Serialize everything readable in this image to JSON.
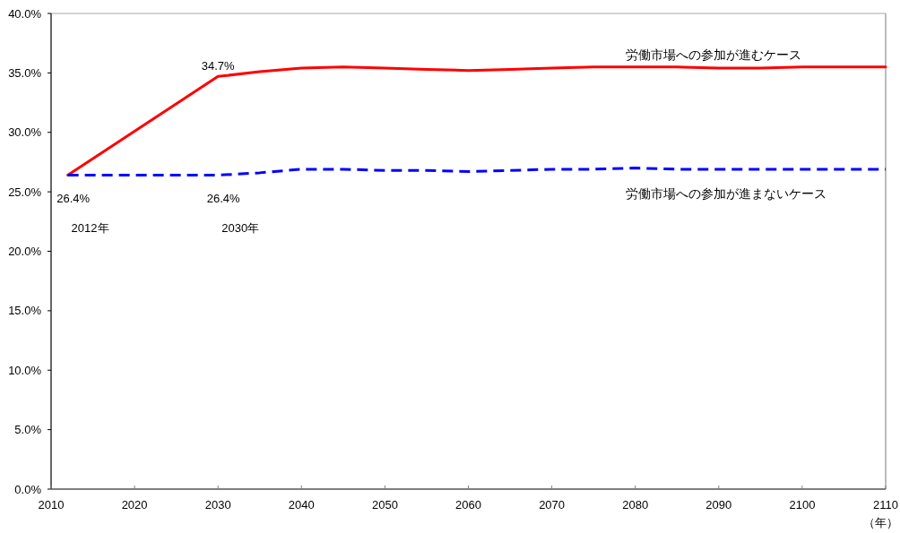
{
  "chart_data": {
    "type": "line",
    "xlabel": "（年）",
    "x": [
      2012,
      2030,
      2035,
      2040,
      2045,
      2050,
      2055,
      2060,
      2065,
      2070,
      2075,
      2080,
      2085,
      2090,
      2095,
      2100,
      2105,
      2110
    ],
    "series": [
      {
        "name": "労働市場への参加が進むケース",
        "color": "#ff0000",
        "line_style": "solid",
        "values": [
          26.4,
          34.7,
          35.1,
          35.4,
          35.5,
          35.4,
          35.3,
          35.2,
          35.3,
          35.4,
          35.5,
          35.5,
          35.5,
          35.4,
          35.4,
          35.5,
          35.5,
          35.5
        ],
        "value_labels": [
          "26.4%",
          "34.7%",
          null,
          null,
          null,
          null,
          null,
          null,
          null,
          null,
          null,
          null,
          null,
          null,
          null,
          null,
          null,
          null
        ]
      },
      {
        "name": "労働市場への参加が進まないケース",
        "color": "#0000ff",
        "line_style": "dashed",
        "values": [
          26.4,
          26.4,
          26.6,
          26.9,
          26.9,
          26.8,
          26.8,
          26.7,
          26.8,
          26.9,
          26.9,
          27.0,
          26.9,
          26.9,
          26.9,
          26.9,
          26.9,
          26.9
        ],
        "value_labels": [
          null,
          "26.4%",
          null,
          null,
          null,
          null,
          null,
          null,
          null,
          null,
          null,
          null,
          null,
          null,
          null,
          null,
          null,
          null
        ]
      }
    ],
    "annotations": [
      "2012年",
      "2030年"
    ],
    "xlim": [
      2010,
      2110
    ],
    "ylim": [
      0,
      40
    ],
    "xticks": [
      2010,
      2020,
      2030,
      2040,
      2050,
      2060,
      2070,
      2080,
      2090,
      2100,
      2110
    ],
    "yticks": [
      {
        "value": 0,
        "label": "0.0%"
      },
      {
        "value": 5,
        "label": "5.0%"
      },
      {
        "value": 10,
        "label": "10.0%"
      },
      {
        "value": 15,
        "label": "15.0%"
      },
      {
        "value": 20,
        "label": "20.0%"
      },
      {
        "value": 25,
        "label": "25.0%"
      },
      {
        "value": 30,
        "label": "30.0%"
      },
      {
        "value": 35,
        "label": "35.0%"
      },
      {
        "value": 40,
        "label": "40.0%"
      }
    ]
  }
}
